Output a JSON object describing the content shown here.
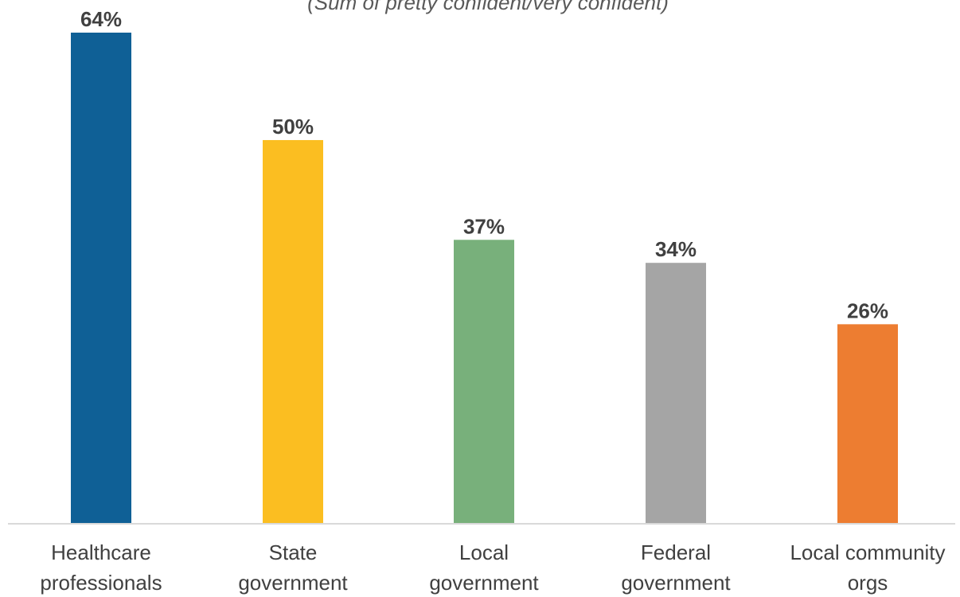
{
  "chart_data": {
    "type": "bar",
    "subtitle": "(Sum of pretty confident/very confident)",
    "categories": [
      [
        "Healthcare",
        "professionals"
      ],
      [
        "State",
        "government"
      ],
      [
        "Local",
        "government"
      ],
      [
        "Federal",
        "government"
      ],
      [
        "Local community",
        "orgs"
      ]
    ],
    "values": [
      64,
      50,
      37,
      34,
      26
    ],
    "data_labels": [
      "64%",
      "50%",
      "37%",
      "34%",
      "26%"
    ],
    "colors": [
      "#0f6096",
      "#fbbe21",
      "#78b07b",
      "#a5a5a5",
      "#ed7d31"
    ],
    "ylim": [
      0,
      64
    ],
    "grid": false,
    "legend": "none"
  }
}
